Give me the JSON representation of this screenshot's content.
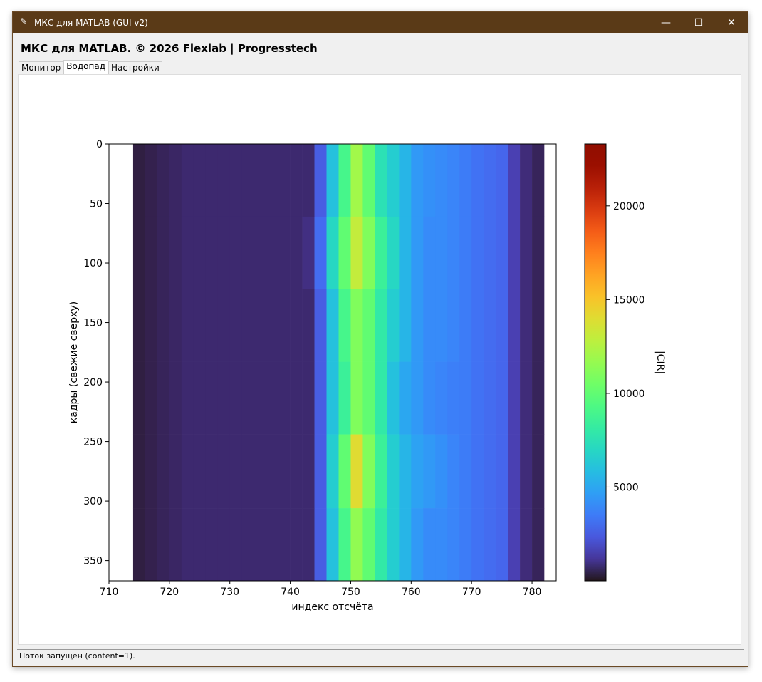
{
  "window_title": "МКС для MATLAB  (GUI v2)",
  "header": "МКС для MATLAB. © 2026 Flexlab | Progresstech",
  "tabs": [
    "Монитор",
    "Водопад",
    "Настройки"
  ],
  "status": "Поток запущен (content=1).",
  "chart_data": {
    "type": "heatmap",
    "x_label": "индекс отсчёта",
    "y_label": "кадры (свежие сверху)",
    "colorbar_label": "|CIR|",
    "colormap": "turbo",
    "xlim": [
      710,
      784
    ],
    "ylim": [
      367,
      0
    ],
    "xticks": [
      710,
      720,
      730,
      740,
      750,
      760,
      770,
      780
    ],
    "yticks": [
      0,
      50,
      100,
      150,
      200,
      250,
      300,
      350
    ],
    "clim": [
      0,
      23300
    ],
    "cticks": [
      5000,
      10000,
      15000,
      20000
    ],
    "x_bins": [
      710,
      712,
      714,
      716,
      718,
      720,
      722,
      724,
      726,
      728,
      730,
      732,
      734,
      736,
      738,
      740,
      742,
      744,
      746,
      748,
      750,
      752,
      754,
      756,
      758,
      760,
      762,
      764,
      766,
      768,
      770,
      772,
      774,
      776,
      778,
      780,
      782,
      784
    ],
    "y_bins": [
      0,
      61,
      122,
      183,
      244,
      306,
      367
    ],
    "z": [
      [
        null,
        null,
        300,
        400,
        500,
        600,
        700,
        700,
        700,
        700,
        700,
        700,
        700,
        700,
        700,
        700,
        700,
        2500,
        6000,
        9000,
        12000,
        10000,
        7500,
        6500,
        5500,
        4500,
        4200,
        4000,
        3800,
        3500,
        3200,
        3000,
        2800,
        1500,
        800,
        500,
        null
      ],
      [
        null,
        null,
        300,
        400,
        500,
        600,
        700,
        700,
        700,
        700,
        700,
        700,
        700,
        700,
        700,
        700,
        900,
        3000,
        7000,
        10000,
        13000,
        11000,
        8500,
        7000,
        5500,
        4500,
        4000,
        4000,
        3800,
        3500,
        3200,
        3000,
        2800,
        1500,
        800,
        500,
        null
      ],
      [
        null,
        null,
        300,
        400,
        500,
        600,
        700,
        700,
        700,
        700,
        700,
        700,
        700,
        700,
        700,
        700,
        700,
        2500,
        6000,
        9000,
        11000,
        10000,
        8000,
        6500,
        5500,
        4500,
        4000,
        4000,
        3800,
        3500,
        3200,
        3000,
        2800,
        1500,
        800,
        500,
        null
      ],
      [
        null,
        null,
        300,
        400,
        500,
        600,
        700,
        700,
        700,
        700,
        700,
        700,
        700,
        700,
        700,
        700,
        700,
        2500,
        6000,
        8500,
        11000,
        10000,
        8000,
        6000,
        5000,
        4500,
        4000,
        3800,
        3600,
        3500,
        3200,
        3000,
        2800,
        1500,
        800,
        500,
        null
      ],
      [
        null,
        null,
        300,
        400,
        500,
        600,
        700,
        700,
        700,
        700,
        700,
        700,
        700,
        700,
        700,
        700,
        700,
        2500,
        6500,
        10000,
        14000,
        11000,
        8500,
        6500,
        5500,
        4800,
        4500,
        4200,
        3800,
        3500,
        3200,
        3000,
        2800,
        1500,
        800,
        500,
        null
      ],
      [
        null,
        null,
        300,
        400,
        500,
        600,
        700,
        700,
        700,
        700,
        700,
        700,
        700,
        700,
        700,
        700,
        700,
        2500,
        6000,
        9000,
        11500,
        10000,
        8000,
        6500,
        5500,
        4500,
        4000,
        4000,
        3800,
        3500,
        3200,
        3000,
        2800,
        1500,
        800,
        500,
        null
      ]
    ]
  }
}
